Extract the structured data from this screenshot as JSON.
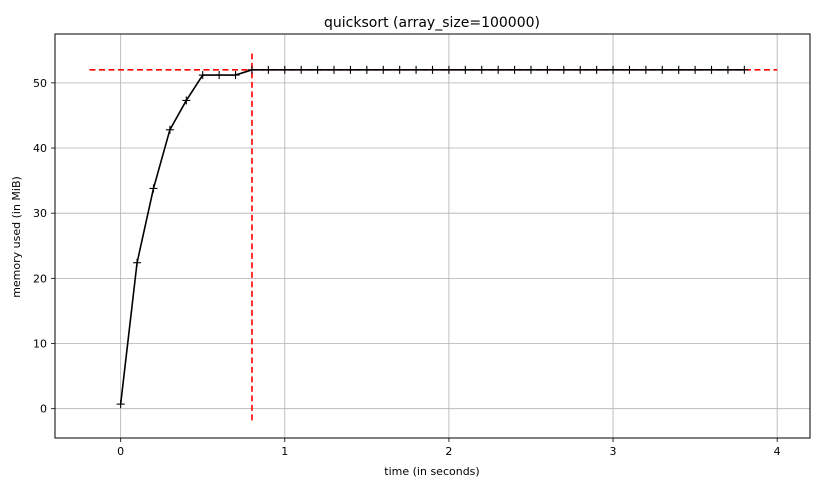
{
  "chart_data": {
    "type": "line",
    "title": "quicksort (array_size=100000)",
    "xlabel": "time (in seconds)",
    "ylabel": "memory used (in MiB)",
    "xlim": [
      -0.4,
      4.2
    ],
    "ylim": [
      -4.5,
      57.5
    ],
    "xticks": [
      0,
      1,
      2,
      3,
      4
    ],
    "yticks": [
      0,
      10,
      20,
      30,
      40,
      50
    ],
    "grid": true,
    "series": [
      {
        "color": "#000000",
        "marker": "+",
        "x": [
          0.0,
          0.1,
          0.2,
          0.3,
          0.4,
          0.5,
          0.6,
          0.7,
          0.8,
          0.9,
          1.0,
          1.1,
          1.2,
          1.3,
          1.4,
          1.5,
          1.6,
          1.7,
          1.8,
          1.9,
          2.0,
          2.1,
          2.2,
          2.3,
          2.4,
          2.5,
          2.6,
          2.7,
          2.8,
          2.9,
          3.0,
          3.1,
          3.2,
          3.3,
          3.4,
          3.5,
          3.6,
          3.7,
          3.8
        ],
        "y": [
          0.7,
          22.4,
          33.8,
          42.8,
          47.3,
          51.2,
          51.2,
          51.2,
          52.0,
          52.0,
          52.0,
          52.0,
          52.0,
          52.0,
          52.0,
          52.0,
          52.0,
          52.0,
          52.0,
          52.0,
          52.0,
          52.0,
          52.0,
          52.0,
          52.0,
          52.0,
          52.0,
          52.0,
          52.0,
          52.0,
          52.0,
          52.0,
          52.0,
          52.0,
          52.0,
          52.0,
          52.0,
          52.0,
          52.0
        ]
      }
    ],
    "reference_lines": [
      {
        "orientation": "horizontal",
        "value": 52.0,
        "from": -0.19,
        "to": 4.0,
        "color": "#ff0000",
        "style": "dashed"
      },
      {
        "orientation": "vertical",
        "value": 0.8,
        "from": -1.8,
        "to": 54.5,
        "color": "#ff0000",
        "style": "dashed"
      }
    ]
  }
}
